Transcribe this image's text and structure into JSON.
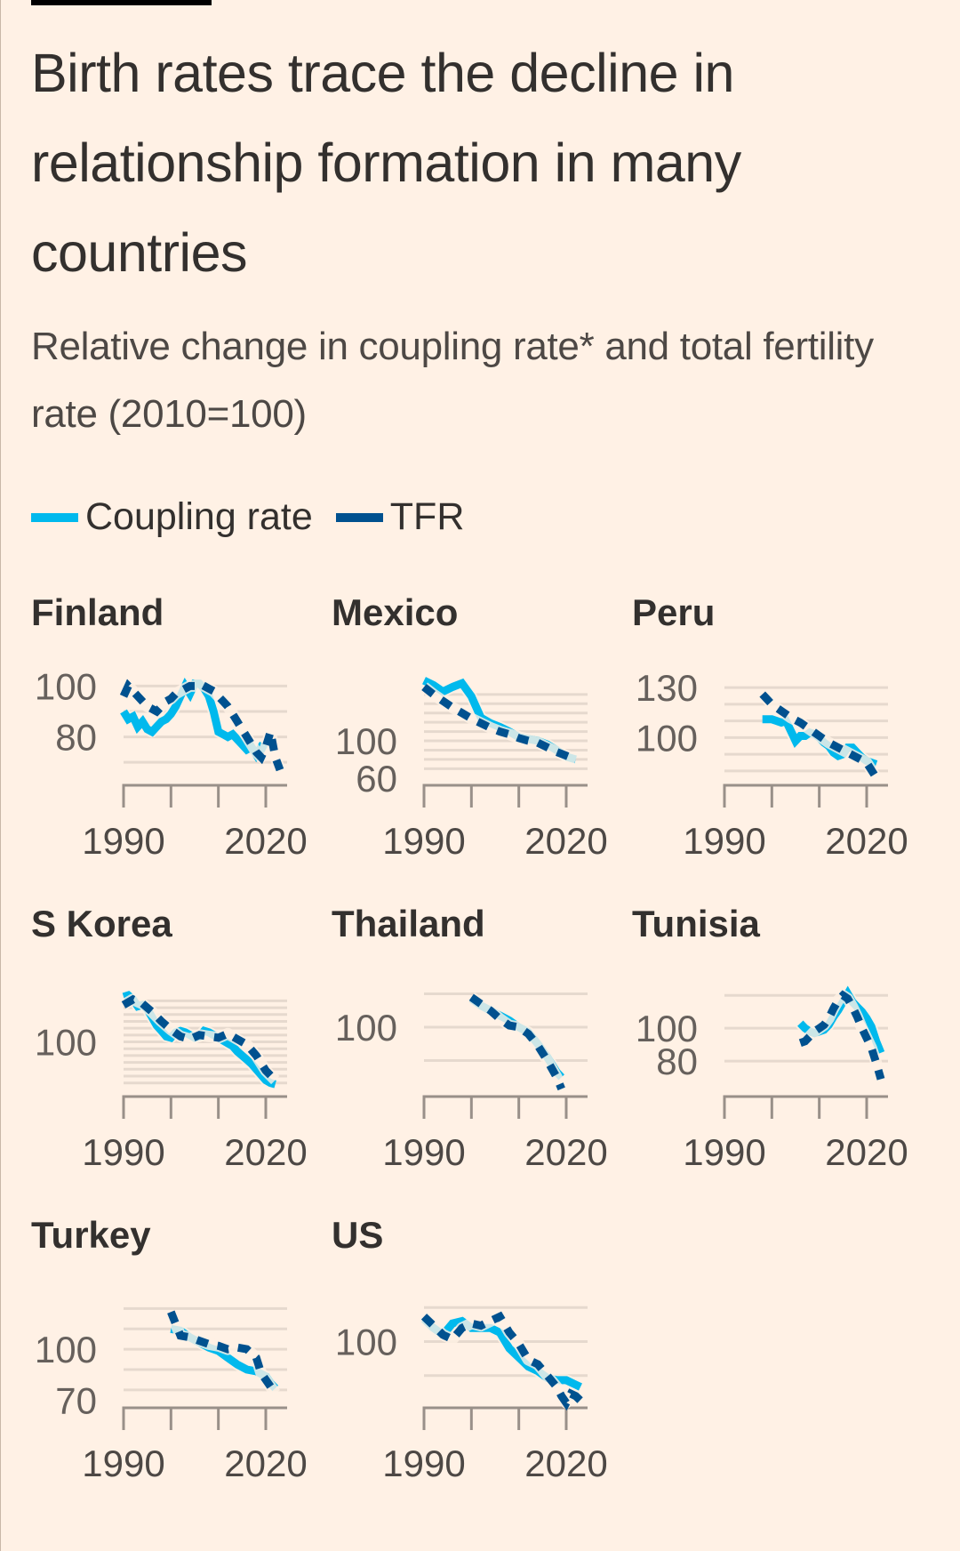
{
  "header": {
    "title": "Birth rates trace the decline in relationship formation in many countries",
    "subtitle": "Relative change in coupling rate* and total fertility rate (2010=100)"
  },
  "legend": [
    {
      "label": "Coupling rate",
      "color": "#00b9ed"
    },
    {
      "label": "TFR",
      "color": "#00518f"
    }
  ],
  "colors": {
    "coupling": "#00b9ed",
    "tfr": "#00518f",
    "grid": "#e6d9ce",
    "axis": "#999089",
    "background": "#fff1e5"
  },
  "chart_data": [
    {
      "type": "line",
      "title": "Finland",
      "xlim": [
        1990,
        2023
      ],
      "xticks": [
        1990,
        2000,
        2010,
        2020
      ],
      "xtick_labels": [
        "1990",
        "2020"
      ],
      "ylim": [
        62,
        104
      ],
      "gridlines": [
        100,
        90,
        80,
        70
      ],
      "ytick_labels": [
        {
          "value": 100,
          "label": "100"
        },
        {
          "value": 80,
          "label": "80"
        }
      ],
      "series": [
        {
          "name": "Coupling rate",
          "x": [
            1990,
            1991,
            1992,
            1993,
            1994,
            1995,
            1996,
            1997,
            1998,
            1999,
            2000,
            2001,
            2002,
            2003,
            2004,
            2005,
            2006,
            2007,
            2008,
            2009,
            2010,
            2011,
            2012,
            2013,
            2014,
            2015,
            2016,
            2017,
            2018,
            2019,
            2020
          ],
          "y": [
            90,
            87,
            88,
            84,
            86,
            83,
            82,
            84,
            86,
            87,
            89,
            92,
            96,
            100,
            97,
            101,
            101,
            99,
            96,
            90,
            82,
            81,
            80,
            81,
            79,
            77,
            75,
            76,
            73,
            76,
            75
          ]
        },
        {
          "name": "TFR",
          "x": [
            1990,
            1991,
            1992,
            1993,
            1994,
            1995,
            1996,
            1997,
            1998,
            1999,
            2000,
            2001,
            2002,
            2003,
            2004,
            2005,
            2006,
            2007,
            2008,
            2009,
            2010,
            2011,
            2012,
            2013,
            2014,
            2015,
            2016,
            2017,
            2018,
            2019,
            2020,
            2021,
            2022,
            2023
          ],
          "y": [
            96,
            100,
            98,
            96,
            94,
            92,
            91,
            90,
            92,
            94,
            95,
            97,
            98,
            99,
            100,
            100,
            101,
            100,
            99,
            98,
            96,
            94,
            92,
            89,
            86,
            83,
            80,
            77,
            74,
            72,
            76,
            82,
            72,
            67
          ]
        }
      ]
    },
    {
      "type": "line",
      "title": "Mexico",
      "xlim": [
        1990,
        2023
      ],
      "xticks": [
        1990,
        2000,
        2010,
        2020
      ],
      "xtick_labels": [
        "1990",
        "2020"
      ],
      "ylim": [
        55,
        170
      ],
      "gridlines": [
        150,
        140,
        130,
        120,
        110,
        100,
        90,
        80,
        70
      ],
      "ytick_labels": [
        {
          "value": 100,
          "label": "100"
        },
        {
          "value": 60,
          "label": "60"
        }
      ],
      "series": [
        {
          "name": "Coupling rate",
          "x": [
            1990,
            1992,
            1994,
            1996,
            1998,
            2000,
            2002,
            2004,
            2006,
            2008,
            2010,
            2012,
            2014,
            2016,
            2018,
            2020,
            2022
          ],
          "y": [
            165,
            160,
            153,
            158,
            162,
            148,
            125,
            119,
            115,
            110,
            104,
            102,
            100,
            96,
            90,
            83,
            80
          ]
        },
        {
          "name": "TFR",
          "x": [
            1990,
            1992,
            1994,
            1996,
            1998,
            2000,
            2002,
            2004,
            2006,
            2008,
            2010,
            2012,
            2014,
            2016,
            2018,
            2020,
            2022
          ],
          "y": [
            158,
            150,
            143,
            136,
            130,
            124,
            119,
            114,
            110,
            107,
            103,
            100,
            98,
            93,
            88,
            84,
            80
          ]
        }
      ]
    },
    {
      "type": "line",
      "title": "Peru",
      "xlim": [
        1990,
        2023
      ],
      "xticks": [
        1990,
        2000,
        2010,
        2020
      ],
      "xtick_labels": [
        "1990",
        "2020"
      ],
      "ylim": [
        73,
        137
      ],
      "gridlines": [
        130,
        120,
        110,
        100,
        90,
        80
      ],
      "ytick_labels": [
        {
          "value": 130,
          "label": "130"
        },
        {
          "value": 100,
          "label": "100"
        }
      ],
      "series": [
        {
          "name": "Coupling rate",
          "x": [
            1998,
            1999,
            2000,
            2001,
            2002,
            2003,
            2004,
            2005,
            2006,
            2007,
            2008,
            2009,
            2010,
            2011,
            2012,
            2013,
            2014,
            2015,
            2016,
            2017,
            2018,
            2019,
            2020,
            2021,
            2022
          ],
          "y": [
            111,
            111,
            111,
            110,
            109,
            110,
            104,
            98,
            101,
            101,
            103,
            102,
            100,
            97,
            95,
            91,
            89,
            90,
            94,
            94,
            91,
            88,
            86,
            85,
            84
          ]
        },
        {
          "name": "TFR",
          "x": [
            1998,
            2000,
            2002,
            2004,
            2006,
            2008,
            2010,
            2012,
            2014,
            2016,
            2018,
            2020,
            2022
          ],
          "y": [
            126,
            120,
            116,
            112,
            109,
            105,
            101,
            97,
            94,
            91,
            88,
            85,
            76
          ]
        }
      ]
    },
    {
      "type": "line",
      "title": "S Korea",
      "xlim": [
        1990,
        2023
      ],
      "xticks": [
        1990,
        2000,
        2010,
        2020
      ],
      "xtick_labels": [
        "1990",
        "2020"
      ],
      "ylim": [
        62,
        140
      ],
      "gridlines": [
        130,
        125,
        120,
        115,
        110,
        105,
        100,
        95,
        90,
        85,
        80,
        75,
        70
      ],
      "ytick_labels": [
        {
          "value": 100,
          "label": "100"
        }
      ],
      "series": [
        {
          "name": "Coupling rate",
          "x": [
            1990,
            1991,
            1992,
            1993,
            1994,
            1995,
            1996,
            1997,
            1998,
            1999,
            2000,
            2001,
            2002,
            2003,
            2004,
            2005,
            2006,
            2007,
            2008,
            2009,
            2010,
            2011,
            2012,
            2013,
            2014,
            2015,
            2016,
            2017,
            2018,
            2019,
            2020,
            2021,
            2022
          ],
          "y": [
            133,
            134,
            131,
            126,
            127,
            124,
            118,
            112,
            108,
            104,
            103,
            107,
            108,
            107,
            105,
            103,
            104,
            108,
            107,
            105,
            103,
            101,
            99,
            97,
            93,
            90,
            87,
            84,
            80,
            76,
            72,
            70,
            69
          ]
        },
        {
          "name": "TFR",
          "x": [
            1990,
            1992,
            1994,
            1996,
            1998,
            2000,
            2002,
            2004,
            2006,
            2008,
            2010,
            2012,
            2014,
            2016,
            2018,
            2020,
            2022
          ],
          "y": [
            127,
            131,
            128,
            122,
            115,
            109,
            104,
            102,
            105,
            104,
            103,
            106,
            102,
            98,
            90,
            79,
            72
          ]
        }
      ]
    },
    {
      "type": "line",
      "title": "Thailand",
      "xlim": [
        1990,
        2023
      ],
      "xticks": [
        1990,
        2000,
        2010,
        2020
      ],
      "xtick_labels": [
        "1990",
        "2020"
      ],
      "ylim": [
        60,
        124
      ],
      "gridlines": [
        120,
        100,
        80
      ],
      "ytick_labels": [
        {
          "value": 100,
          "label": "100"
        }
      ],
      "series": [
        {
          "name": "Coupling rate",
          "x": [
            2000,
            2002,
            2004,
            2006,
            2008,
            2010,
            2012,
            2014,
            2016,
            2018,
            2019
          ],
          "y": [
            117,
            113,
            110,
            107,
            104,
            100,
            97,
            90,
            82,
            73,
            70
          ]
        },
        {
          "name": "TFR",
          "x": [
            2000,
            2002,
            2004,
            2006,
            2008,
            2010,
            2012,
            2014,
            2016,
            2018,
            2019
          ],
          "y": [
            118,
            114,
            110,
            105,
            101,
            100,
            96,
            89,
            80,
            70,
            63
          ]
        }
      ]
    },
    {
      "type": "line",
      "title": "Tunisia",
      "xlim": [
        1990,
        2023
      ],
      "xticks": [
        1990,
        2000,
        2010,
        2020
      ],
      "xtick_labels": [
        "1990",
        "2020"
      ],
      "ylim": [
        60,
        125
      ],
      "gridlines": [
        120,
        100,
        80
      ],
      "ytick_labels": [
        {
          "value": 100,
          "label": "100"
        },
        {
          "value": 80,
          "label": "80"
        }
      ],
      "series": [
        {
          "name": "Coupling rate",
          "x": [
            2006,
            2007,
            2008,
            2009,
            2010,
            2011,
            2012,
            2013,
            2014,
            2015,
            2016,
            2017,
            2018,
            2019,
            2020,
            2021,
            2022,
            2023
          ],
          "y": [
            103,
            100,
            98,
            97,
            98,
            99,
            102,
            107,
            111,
            116,
            121,
            116,
            113,
            110,
            106,
            101,
            92,
            85
          ]
        },
        {
          "name": "TFR",
          "x": [
            2006,
            2007,
            2008,
            2009,
            2010,
            2011,
            2012,
            2013,
            2014,
            2015,
            2016,
            2017,
            2018,
            2019,
            2020,
            2021,
            2022,
            2023
          ],
          "y": [
            91,
            92,
            95,
            98,
            100,
            102,
            106,
            112,
            117,
            120,
            118,
            113,
            107,
            100,
            94,
            88,
            79,
            69
          ]
        }
      ]
    },
    {
      "type": "line",
      "title": "Turkey",
      "xlim": [
        1990,
        2023
      ],
      "xticks": [
        1990,
        2000,
        2010,
        2020
      ],
      "xtick_labels": [
        "1990",
        "2020"
      ],
      "ylim": [
        67,
        130
      ],
      "gridlines": [
        124,
        112,
        100,
        88,
        76
      ],
      "ytick_labels": [
        {
          "value": 100,
          "label": "100"
        },
        {
          "value": 70,
          "label": "70"
        }
      ],
      "series": [
        {
          "name": "Coupling rate",
          "x": [
            2000,
            2002,
            2004,
            2006,
            2008,
            2010,
            2012,
            2014,
            2016,
            2018,
            2020,
            2021,
            2022
          ],
          "y": [
            112,
            111,
            107,
            104,
            101,
            99,
            95,
            91,
            88,
            87,
            84,
            80,
            77
          ]
        },
        {
          "name": "TFR",
          "x": [
            2000,
            2002,
            2004,
            2006,
            2008,
            2010,
            2012,
            2014,
            2016,
            2018,
            2019,
            2020,
            2021,
            2022
          ],
          "y": [
            122,
            108,
            107,
            105,
            103,
            102,
            100,
            101,
            100,
            95,
            86,
            82,
            78,
            74
          ]
        }
      ]
    },
    {
      "type": "line",
      "title": "US",
      "xlim": [
        1990,
        2023
      ],
      "xticks": [
        1990,
        2000,
        2010,
        2020
      ],
      "xtick_labels": [
        "1990",
        "2020"
      ],
      "ylim": [
        72,
        119
      ],
      "gridlines": [
        115,
        100,
        85
      ],
      "ytick_labels": [
        {
          "value": 100,
          "label": "100"
        }
      ],
      "series": [
        {
          "name": "Coupling rate",
          "x": [
            1990,
            1992,
            1994,
            1996,
            1998,
            2000,
            2002,
            2004,
            2006,
            2008,
            2010,
            2012,
            2014,
            2016,
            2018,
            2020,
            2022,
            2023
          ],
          "y": [
            110,
            106,
            103,
            108,
            109,
            106,
            106,
            106,
            104,
            97,
            93,
            89,
            87,
            84,
            83,
            83,
            81,
            80
          ]
        },
        {
          "name": "TFR",
          "x": [
            1990,
            1992,
            1994,
            1996,
            1998,
            2000,
            2002,
            2004,
            2006,
            2008,
            2010,
            2012,
            2014,
            2016,
            2018,
            2019,
            2020,
            2021,
            2022,
            2023
          ],
          "y": [
            111,
            107,
            103,
            101,
            106,
            108,
            107,
            109,
            111,
            104,
            99,
            92,
            90,
            85,
            80,
            76,
            73,
            77,
            76,
            74
          ]
        }
      ]
    }
  ]
}
